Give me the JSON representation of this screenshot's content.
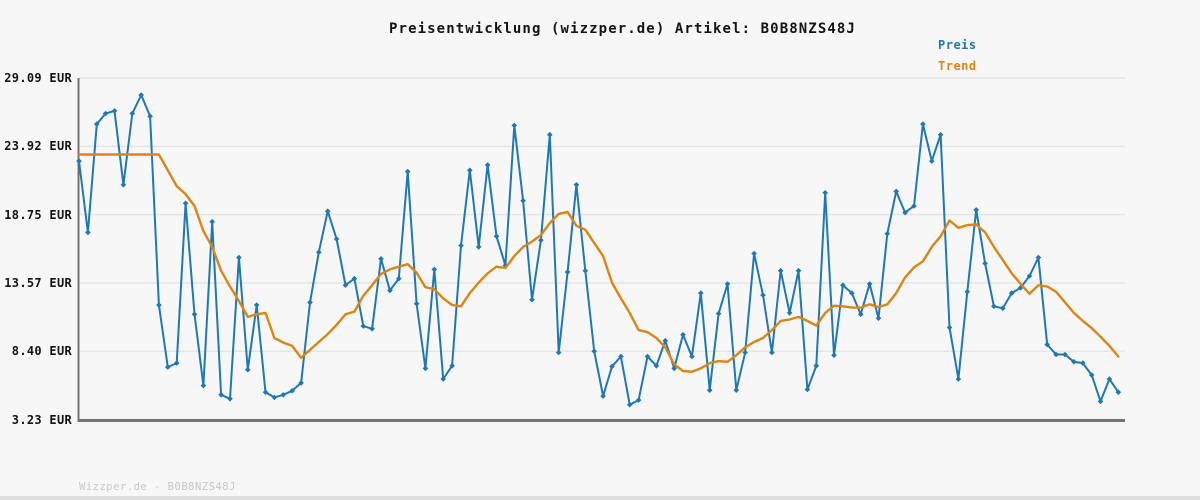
{
  "title": "Preisentwicklung (wizzper.de) Artikel: B0B8NZS48J",
  "footer": "Wizzper.de - B0B8NZS48J",
  "legend": {
    "items": [
      {
        "label": "Preis",
        "color": "#1f77b4"
      },
      {
        "label": "Trend",
        "color": "#dd8414"
      }
    ]
  },
  "colors": {
    "background": "#f7f7f7",
    "gridline": "#e4e4e4",
    "axis": "#737373",
    "price": "#1f77b4",
    "trend": "#dd8414"
  },
  "chart_data": {
    "type": "line",
    "title": "Preisentwicklung (wizzper.de) Artikel: B0B8NZS48J",
    "xlabel": "",
    "ylabel": "",
    "x_tick_labels": "none",
    "ylim": [
      3.23,
      29.09
    ],
    "grid": "horizontal",
    "legend_position": "top-right",
    "y_ticks": [
      {
        "label": "29.09 EUR",
        "value": 29.09
      },
      {
        "label": "23.92 EUR",
        "value": 23.92
      },
      {
        "label": "18.75 EUR",
        "value": 18.75
      },
      {
        "label": "13.57 EUR",
        "value": 13.57
      },
      {
        "label": "8.40 EUR",
        "value": 8.4
      },
      {
        "label": "3.23 EUR",
        "value": 3.23
      }
    ],
    "unit": "EUR",
    "series": [
      {
        "name": "Preis",
        "color": "#1f77b4",
        "marker": "diamond",
        "values": [
          22.8,
          17.4,
          25.6,
          26.4,
          26.6,
          21.0,
          26.4,
          27.8,
          26.2,
          11.9,
          7.2,
          7.5,
          19.6,
          11.2,
          5.8,
          18.2,
          5.1,
          4.8,
          15.5,
          7.0,
          11.9,
          5.3,
          4.9,
          5.1,
          5.4,
          6.0,
          12.1,
          15.9,
          19.0,
          16.9,
          13.4,
          13.9,
          10.3,
          10.1,
          15.4,
          13.0,
          13.9,
          22.0,
          12.0,
          7.1,
          14.6,
          6.3,
          7.3,
          16.4,
          22.1,
          16.3,
          22.5,
          17.1,
          14.9,
          25.5,
          19.8,
          12.3,
          16.8,
          24.8,
          8.3,
          14.4,
          21.0,
          14.5,
          8.4,
          5.0,
          7.25,
          8.0,
          4.35,
          4.7,
          8.0,
          7.3,
          9.2,
          7.1,
          9.65,
          8.0,
          12.8,
          5.45,
          11.25,
          13.5,
          5.45,
          8.3,
          15.8,
          12.65,
          8.3,
          14.5,
          11.3,
          14.5,
          5.5,
          7.3,
          20.4,
          8.1,
          13.4,
          12.8,
          11.2,
          13.5,
          10.9,
          17.3,
          20.5,
          18.9,
          19.4,
          25.6,
          22.8,
          24.8,
          10.2,
          6.3,
          12.9,
          19.1,
          15.05,
          11.8,
          11.65,
          12.8,
          13.2,
          14.1,
          15.5,
          8.9,
          8.15,
          8.15,
          7.6,
          7.5,
          6.6,
          4.6,
          6.3,
          5.3
        ]
      },
      {
        "name": "Trend",
        "color": "#dd8414",
        "marker": "none",
        "values": [
          23.3,
          23.3,
          23.3,
          23.3,
          23.3,
          23.3,
          23.3,
          23.3,
          23.3,
          23.3,
          22.1,
          20.9,
          20.3,
          19.4,
          17.5,
          16.3,
          14.5,
          13.3,
          12.2,
          11.0,
          11.2,
          11.3,
          9.4,
          9.05,
          8.8,
          7.9,
          8.5,
          9.1,
          9.7,
          10.4,
          11.2,
          11.4,
          12.6,
          13.4,
          14.25,
          14.6,
          14.8,
          15.0,
          14.35,
          13.25,
          13.1,
          12.4,
          11.9,
          11.8,
          12.8,
          13.6,
          14.3,
          14.8,
          14.7,
          15.6,
          16.3,
          16.7,
          17.2,
          18.1,
          18.8,
          18.95,
          17.9,
          17.6,
          16.6,
          15.6,
          13.6,
          12.4,
          11.3,
          10.0,
          9.85,
          9.4,
          8.7,
          7.4,
          6.9,
          6.85,
          7.1,
          7.5,
          7.65,
          7.6,
          8.1,
          8.7,
          9.1,
          9.4,
          10.0,
          10.7,
          10.8,
          11.0,
          10.7,
          10.35,
          11.3,
          11.85,
          11.8,
          11.7,
          11.7,
          11.95,
          11.75,
          11.95,
          12.8,
          14.0,
          14.75,
          15.2,
          16.3,
          17.1,
          18.3,
          17.75,
          17.95,
          18.0,
          17.4,
          16.3,
          15.3,
          14.3,
          13.5,
          12.75,
          13.4,
          13.3,
          12.9,
          12.1,
          11.3,
          10.7,
          10.15,
          9.5,
          8.8,
          8.0
        ]
      }
    ]
  }
}
